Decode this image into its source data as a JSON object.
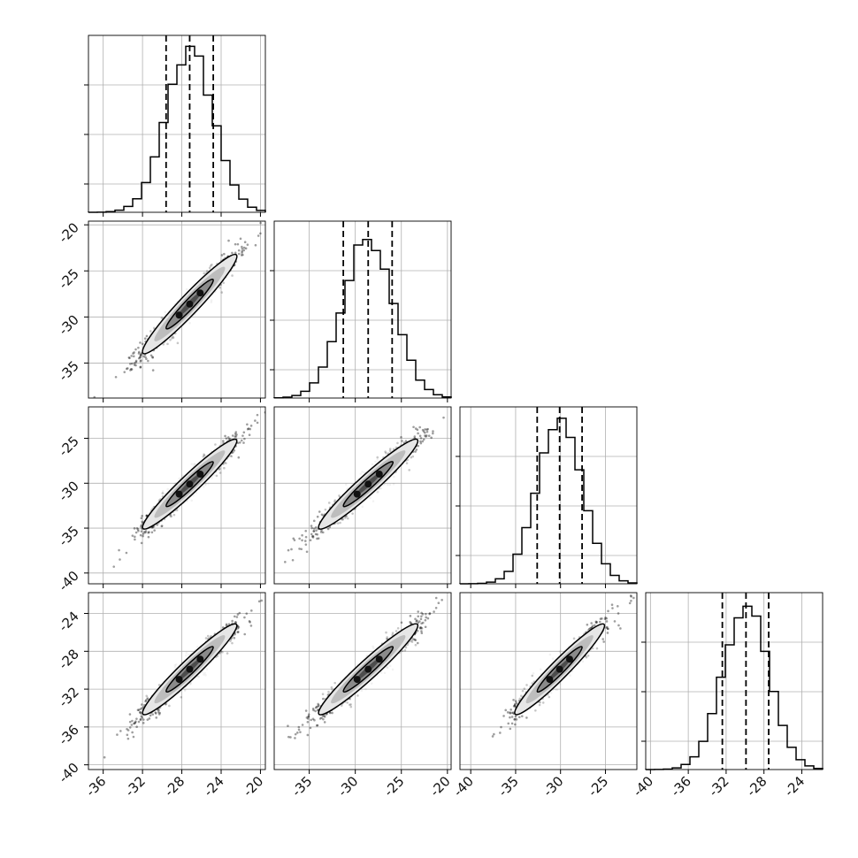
{
  "chart_data": {
    "type": "corner",
    "n_params": 4,
    "param_stats": [
      {
        "median": -27.2,
        "q16": -29.6,
        "q84": -24.8,
        "mean": -27.2,
        "sd": 2.4,
        "range": [
          -37.5,
          -19.5
        ]
      },
      {
        "median": -28.6,
        "q16": -31.3,
        "q84": -26.0,
        "mean": -28.6,
        "sd": 2.7,
        "range": [
          -38.8,
          -19.6
        ]
      },
      {
        "median": -30.1,
        "q16": -32.6,
        "q84": -27.6,
        "mean": -30.1,
        "sd": 2.5,
        "range": [
          -41.2,
          -21.5
        ]
      },
      {
        "median": -29.9,
        "q16": -32.4,
        "q84": -27.5,
        "mean": -29.9,
        "sd": 2.4,
        "range": [
          -40.5,
          -21.8
        ]
      }
    ],
    "correlation": 0.96,
    "histogram_peak_y": [
      0.92,
      0.91,
      0.92,
      0.93
    ],
    "x_ticks": [
      [
        "-36",
        "-32",
        "-28",
        "-24",
        "-20"
      ],
      [
        "-35",
        "-30",
        "-25",
        "-20"
      ],
      [
        "-40",
        "-35",
        "-30",
        "-25"
      ],
      [
        "-40",
        "-36",
        "-32",
        "-28",
        "-24"
      ]
    ],
    "x_tick_values": [
      [
        -36,
        -32,
        -28,
        -24,
        -20
      ],
      [
        -35,
        -30,
        -25,
        -20
      ],
      [
        -40,
        -35,
        -30,
        -25
      ],
      [
        -40,
        -36,
        -32,
        -28,
        -24
      ]
    ],
    "y_ticks": [
      [],
      [
        "-20",
        "-25",
        "-30",
        "-35"
      ],
      [
        "-25",
        "-30",
        "-35",
        "-40"
      ],
      [
        "-24",
        "-28",
        "-32",
        "-36",
        "-40"
      ]
    ],
    "y_tick_values": [
      [],
      [
        -20,
        -25,
        -30,
        -35
      ],
      [
        -25,
        -30,
        -35,
        -40
      ],
      [
        -24,
        -28,
        -32,
        -36,
        -40
      ]
    ],
    "contour_levels_sigma": [
      0.5,
      1.0,
      1.5,
      2.0
    ],
    "grid": true,
    "quantile_lines": "dashed",
    "colors": {
      "line": "#000000",
      "grid": "#b0b0b0",
      "fill_levels": [
        "#e6e6e6",
        "#bdbdbd",
        "#8a8a8a",
        "#4d4d4d"
      ]
    }
  }
}
